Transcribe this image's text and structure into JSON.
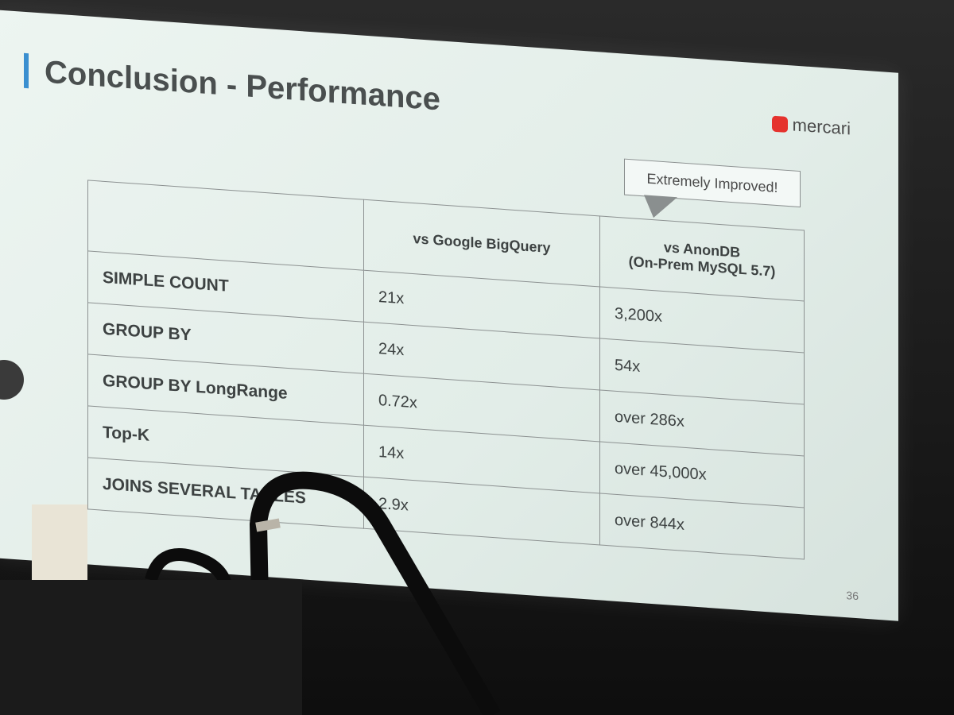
{
  "slide": {
    "title": "Conclusion - Performance",
    "logo": "mercari",
    "callout": "Extremely Improved!",
    "page_number": "36",
    "table": {
      "columns": [
        {
          "name": "vs Google BigQuery"
        },
        {
          "name": "vs AnonDB",
          "subtitle": "(On-Prem MySQL 5.7)"
        }
      ],
      "rows": [
        {
          "label": "SIMPLE COUNT",
          "values": [
            "21x",
            "3,200x"
          ]
        },
        {
          "label": "GROUP BY",
          "values": [
            "24x",
            "54x"
          ]
        },
        {
          "label": "GROUP BY LongRange",
          "values": [
            "0.72x",
            "over 286x"
          ]
        },
        {
          "label": "Top-K",
          "values": [
            "14x",
            "over 45,000x"
          ]
        },
        {
          "label": "JOINS SEVERAL TABLES",
          "values": [
            "2.9x",
            "over 844x"
          ]
        }
      ]
    }
  }
}
